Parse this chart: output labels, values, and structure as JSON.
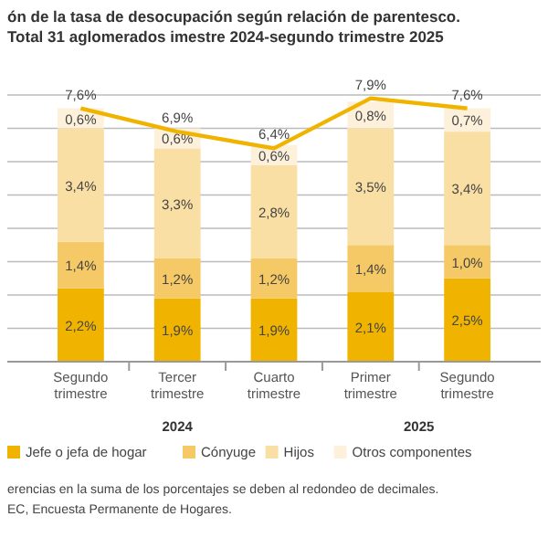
{
  "chart_data": {
    "type": "bar",
    "stacked": true,
    "title": "ón de la tasa de desocupación según relación de parentesco. Total 31 aglomerados imestre 2024-segundo trimestre 2025",
    "categories": [
      "Segundo trimestre",
      "Tercer trimestre",
      "Cuarto trimestre",
      "Primer trimestre",
      "Segundo trimestre"
    ],
    "series": [
      {
        "name": "Jefe o jefa de hogar",
        "color": "#f0b400",
        "values": [
          2.2,
          1.9,
          1.9,
          2.1,
          2.5
        ],
        "value_labels": [
          "2,2%",
          "1,9%",
          "1,9%",
          "2,1%",
          "2,5%"
        ]
      },
      {
        "name": "Cónyuge",
        "color": "#f5c965",
        "values": [
          1.4,
          1.2,
          1.2,
          1.4,
          1.0
        ],
        "value_labels": [
          "1,4%",
          "1,2%",
          "1,2%",
          "1,4%",
          "1,0%"
        ]
      },
      {
        "name": "Hijos",
        "color": "#f9dfa3",
        "values": [
          3.4,
          3.3,
          2.8,
          3.5,
          3.4
        ],
        "value_labels": [
          "3,4%",
          "3,3%",
          "2,8%",
          "3,5%",
          "3,4%"
        ]
      },
      {
        "name": "Otros componentes",
        "color": "#fdf1dc",
        "values": [
          0.6,
          0.6,
          0.6,
          0.8,
          0.7
        ],
        "value_labels": [
          "0,6%",
          "0,6%",
          "0,6%",
          "0,8%",
          "0,7%"
        ]
      },
      {
        "type": "line",
        "color": "#f0b400",
        "values": [
          7.6,
          6.9,
          6.4,
          7.9,
          7.6
        ],
        "value_labels": [
          "7,6%",
          "6,9%",
          "6,4%",
          "7,9%",
          "7,6%"
        ]
      }
    ],
    "ylim": [
      0,
      8
    ],
    "yticks": [
      {
        "value": 0,
        "label": null
      },
      {
        "value": 1,
        "label": null
      },
      {
        "value": 2,
        "label": null
      },
      {
        "value": 3,
        "label": null
      },
      {
        "value": 4,
        "label": null
      },
      {
        "value": 5,
        "label": null
      },
      {
        "value": 6,
        "label": null
      },
      {
        "value": 7,
        "label": null
      },
      {
        "value": 8,
        "label": null
      }
    ],
    "grid": "y",
    "tick_labels": "x",
    "legend": "bottom",
    "marker": "none",
    "annotations": [
      "2024",
      "2025",
      "erencias en la suma de los porcentajes se deben al redondeo de decimales.",
      "EC, Encuesta Permanente de Hogares."
    ]
  }
}
